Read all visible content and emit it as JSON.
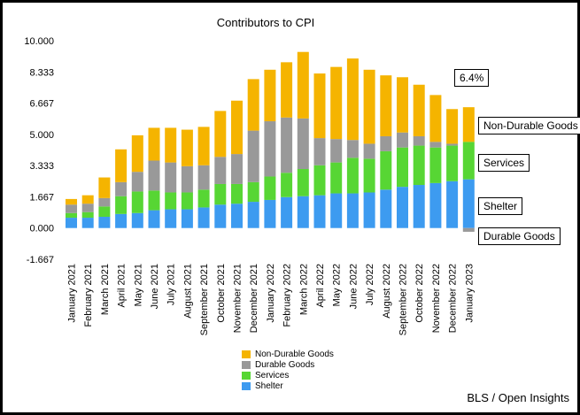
{
  "chart_data": {
    "type": "bar",
    "stacked": true,
    "title": "Contributors to CPI",
    "categories": [
      "January 2021",
      "February 2021",
      "March 2021",
      "April 2021",
      "May 2021",
      "June 2021",
      "July 2021",
      "August 2021",
      "September 2021",
      "October 2021",
      "November 2021",
      "December 2021",
      "January 2022",
      "February 2022",
      "March 2022",
      "April 2022",
      "May 2022",
      "June 2022",
      "July 2022",
      "August 2022",
      "September 2022",
      "October 2022",
      "November 2022",
      "December 2022",
      "January 2023"
    ],
    "series": [
      {
        "name": "Shelter",
        "color": "#3d9bf0",
        "values": [
          0.55,
          0.55,
          0.6,
          0.75,
          0.8,
          0.95,
          1.0,
          1.0,
          1.1,
          1.25,
          1.3,
          1.4,
          1.5,
          1.65,
          1.7,
          1.75,
          1.85,
          1.85,
          1.9,
          2.05,
          2.2,
          2.3,
          2.4,
          2.5,
          2.6
        ]
      },
      {
        "name": "Services",
        "color": "#57d634",
        "values": [
          0.25,
          0.3,
          0.55,
          0.95,
          1.15,
          1.05,
          0.9,
          0.9,
          0.95,
          1.1,
          1.05,
          1.05,
          1.25,
          1.3,
          1.45,
          1.6,
          1.65,
          1.9,
          1.8,
          2.05,
          2.1,
          2.1,
          1.9,
          1.9,
          2.0
        ]
      },
      {
        "name": "Durable Goods",
        "color": "#999999",
        "values": [
          0.45,
          0.45,
          0.45,
          0.75,
          1.05,
          1.6,
          1.6,
          1.4,
          1.3,
          1.45,
          1.6,
          2.75,
          2.95,
          2.95,
          2.7,
          1.45,
          1.25,
          0.95,
          0.8,
          0.8,
          0.8,
          0.5,
          0.3,
          0.1,
          -0.2
        ]
      },
      {
        "name": "Non-Durable Goods",
        "color": "#f5b400",
        "values": [
          0.3,
          0.45,
          1.1,
          1.75,
          1.95,
          1.75,
          1.85,
          1.95,
          2.05,
          2.45,
          2.85,
          2.75,
          2.75,
          2.95,
          3.55,
          3.45,
          3.85,
          4.35,
          3.95,
          3.25,
          2.95,
          2.75,
          2.5,
          1.85,
          1.85
        ]
      }
    ],
    "y_ticks": [
      "10.000",
      "8.333",
      "6.667",
      "5.000",
      "3.333",
      "1.667",
      "0.000",
      "-1.667"
    ],
    "ylim": [
      -1.667,
      10.0
    ],
    "legend_position": "bottom",
    "grid": false,
    "annotations": {
      "total": "6.4%",
      "non_durable": "Non-Durable Goods",
      "services": "Services",
      "shelter": "Shelter",
      "durable": "Durable Goods"
    }
  },
  "source": "BLS / Open Insights"
}
